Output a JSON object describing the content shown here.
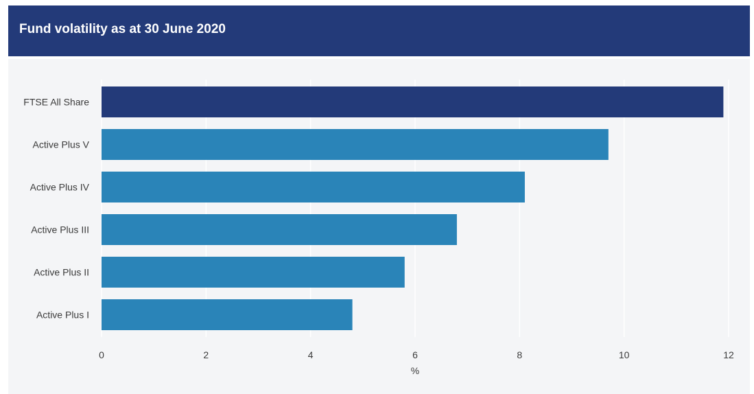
{
  "header": {
    "title": "Fund volatility as at 30 June 2020",
    "background": "#233a79"
  },
  "chart_data": {
    "type": "bar",
    "orientation": "horizontal",
    "title": "Fund volatility as at 30 June 2020",
    "xlabel": "%",
    "ylabel": "",
    "xlim": [
      0,
      12
    ],
    "x_ticks": [
      0,
      2,
      4,
      6,
      8,
      10,
      12
    ],
    "grid": true,
    "categories": [
      "FTSE All Share",
      "Active Plus V",
      "Active Plus IV",
      "Active Plus III",
      "Active Plus II",
      "Active Plus I"
    ],
    "values": [
      11.9,
      9.7,
      8.1,
      6.8,
      5.8,
      4.8
    ],
    "colors": [
      "#233a79",
      "#2a84b8",
      "#2a84b8",
      "#2a84b8",
      "#2a84b8",
      "#2a84b8"
    ]
  }
}
